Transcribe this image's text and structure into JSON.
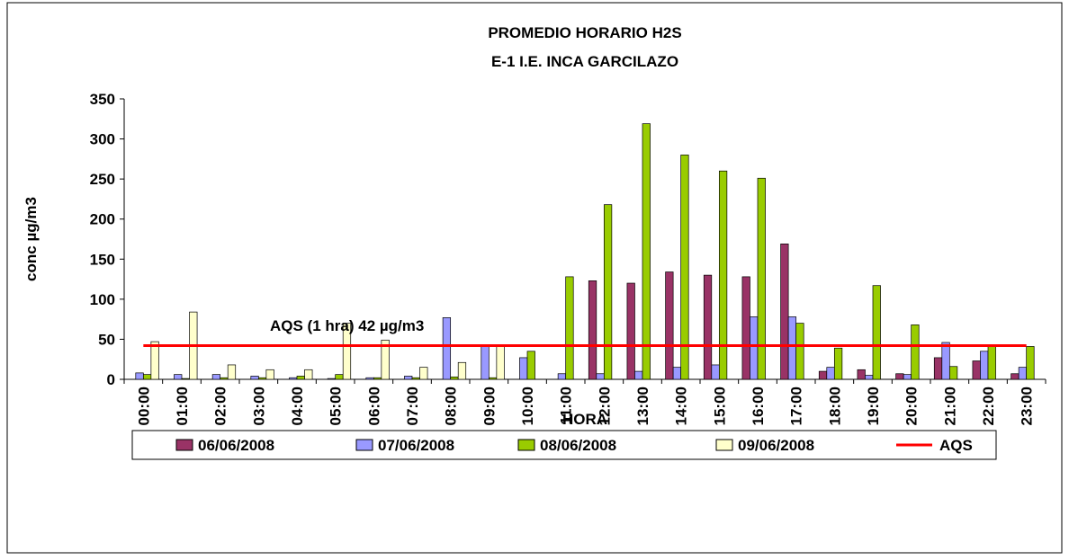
{
  "chart_data": {
    "type": "bar",
    "title": "PROMEDIO HORARIO H2S",
    "subtitle": "E-1 I.E. INCA GARCILAZO",
    "x_label": "HORA",
    "y_label": "conc µg/m3",
    "annotation": "AQS (1 hra) 42 µg/m3",
    "categories": [
      "00:00",
      "01:00",
      "02:00",
      "03:00",
      "04:00",
      "05:00",
      "06:00",
      "07:00",
      "08:00",
      "09:00",
      "10:00",
      "11:00",
      "12:00",
      "13:00",
      "14:00",
      "15:00",
      "16:00",
      "17:00",
      "18:00",
      "19:00",
      "20:00",
      "21:00",
      "22:00",
      "23:00"
    ],
    "series": [
      {
        "name": "06/06/2008",
        "color": "#993366",
        "values": [
          0,
          0,
          0,
          0,
          0,
          0,
          0,
          0,
          0,
          0,
          0,
          0,
          123,
          120,
          134,
          130,
          128,
          169,
          10,
          12,
          7,
          27,
          23,
          7
        ]
      },
      {
        "name": "07/06/2008",
        "color": "#9999ff",
        "values": [
          8,
          6,
          6,
          4,
          2,
          1,
          2,
          4,
          77,
          43,
          27,
          7,
          7,
          10,
          15,
          18,
          78,
          78,
          15,
          5,
          6,
          46,
          35,
          15
        ]
      },
      {
        "name": "08/06/2008",
        "color": "#99cc00",
        "values": [
          6,
          1,
          2,
          2,
          4,
          6,
          2,
          2,
          3,
          2,
          35,
          128,
          218,
          319,
          280,
          260,
          251,
          70,
          39,
          117,
          68,
          16,
          43,
          41
        ]
      },
      {
        "name": "09/06/2008",
        "color": "#ffffcc",
        "values": [
          47,
          84,
          18,
          12,
          12,
          70,
          49,
          15,
          21,
          43,
          0,
          0,
          0,
          0,
          0,
          0,
          0,
          0,
          0,
          0,
          0,
          0,
          0,
          0
        ]
      },
      {
        "name": "AQS",
        "color": "#ff0000",
        "type": "line",
        "values": [
          42,
          42,
          42,
          42,
          42,
          42,
          42,
          42,
          42,
          42,
          42,
          42,
          42,
          42,
          42,
          42,
          42,
          42,
          42,
          42,
          42,
          42,
          42,
          42
        ]
      }
    ],
    "ylim": [
      0,
      350
    ],
    "yticks": [
      0,
      50,
      100,
      150,
      200,
      250,
      300,
      350
    ],
    "grid": false,
    "legend": "bottom"
  }
}
